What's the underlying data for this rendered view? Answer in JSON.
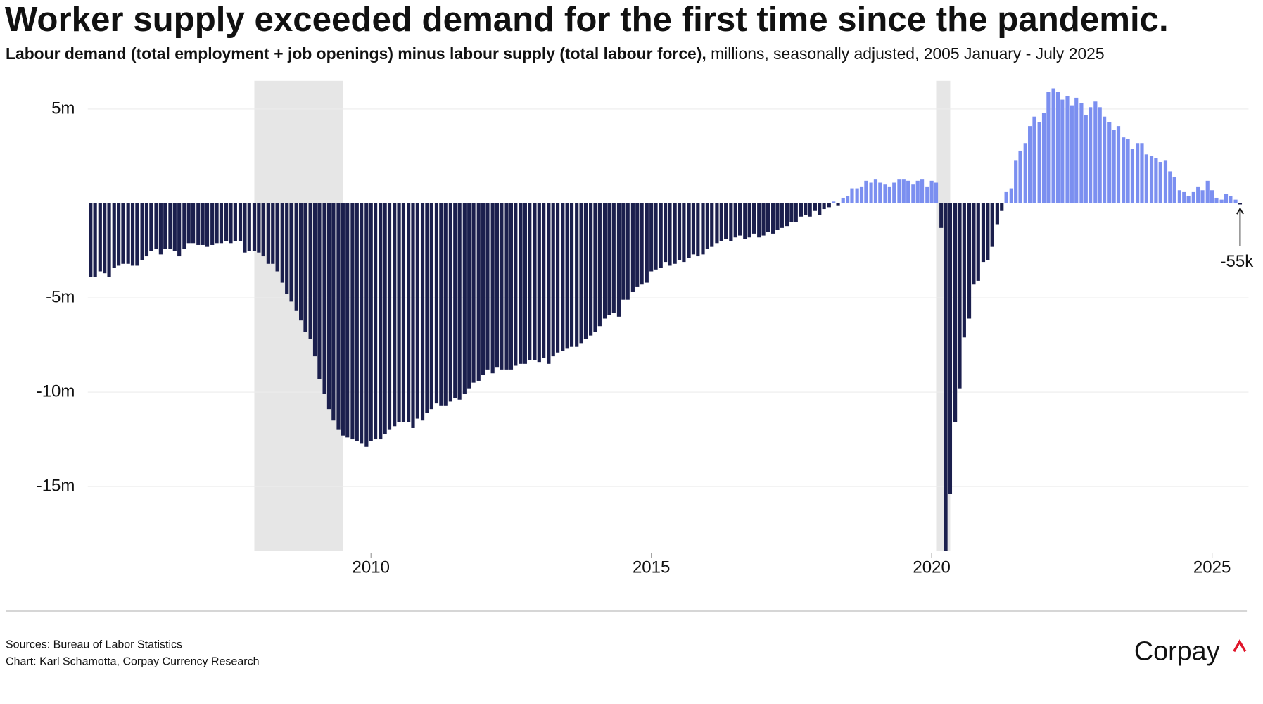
{
  "chart_data": {
    "type": "bar",
    "title": "Worker supply exceeded demand for the first time since the pandemic.",
    "subtitle": [
      "Labour demand (total employment + job openings) minus labour supply (total labour force),",
      " millions, seasonally adjusted, 2005 January - July 2025"
    ],
    "x": [
      2005.0,
      2005.08,
      2005.17,
      2005.25,
      2005.33,
      2005.42,
      2005.5,
      2005.58,
      2005.67,
      2005.75,
      2005.83,
      2005.92,
      2006.0,
      2006.08,
      2006.17,
      2006.25,
      2006.33,
      2006.42,
      2006.5,
      2006.58,
      2006.67,
      2006.75,
      2006.83,
      2006.92,
      2007.0,
      2007.08,
      2007.17,
      2007.25,
      2007.33,
      2007.42,
      2007.5,
      2007.58,
      2007.67,
      2007.75,
      2007.83,
      2007.92,
      2008.0,
      2008.08,
      2008.17,
      2008.25,
      2008.33,
      2008.42,
      2008.5,
      2008.58,
      2008.67,
      2008.75,
      2008.83,
      2008.92,
      2009.0,
      2009.08,
      2009.17,
      2009.25,
      2009.33,
      2009.42,
      2009.5,
      2009.58,
      2009.67,
      2009.75,
      2009.83,
      2009.92,
      2010.0,
      2010.08,
      2010.17,
      2010.25,
      2010.33,
      2010.42,
      2010.5,
      2010.58,
      2010.67,
      2010.75,
      2010.83,
      2010.92,
      2011.0,
      2011.08,
      2011.17,
      2011.25,
      2011.33,
      2011.42,
      2011.5,
      2011.58,
      2011.67,
      2011.75,
      2011.83,
      2011.92,
      2012.0,
      2012.08,
      2012.17,
      2012.25,
      2012.33,
      2012.42,
      2012.5,
      2012.58,
      2012.67,
      2012.75,
      2012.83,
      2012.92,
      2013.0,
      2013.08,
      2013.17,
      2013.25,
      2013.33,
      2013.42,
      2013.5,
      2013.58,
      2013.67,
      2013.75,
      2013.83,
      2013.92,
      2014.0,
      2014.08,
      2014.17,
      2014.25,
      2014.33,
      2014.42,
      2014.5,
      2014.58,
      2014.67,
      2014.75,
      2014.83,
      2014.92,
      2015.0,
      2015.08,
      2015.17,
      2015.25,
      2015.33,
      2015.42,
      2015.5,
      2015.58,
      2015.67,
      2015.75,
      2015.83,
      2015.92,
      2016.0,
      2016.08,
      2016.17,
      2016.25,
      2016.33,
      2016.42,
      2016.5,
      2016.58,
      2016.67,
      2016.75,
      2016.83,
      2016.92,
      2017.0,
      2017.08,
      2017.17,
      2017.25,
      2017.33,
      2017.42,
      2017.5,
      2017.58,
      2017.67,
      2017.75,
      2017.83,
      2017.92,
      2018.0,
      2018.08,
      2018.17,
      2018.25,
      2018.33,
      2018.42,
      2018.5,
      2018.58,
      2018.67,
      2018.75,
      2018.83,
      2018.92,
      2019.0,
      2019.08,
      2019.17,
      2019.25,
      2019.33,
      2019.42,
      2019.5,
      2019.58,
      2019.67,
      2019.75,
      2019.83,
      2019.92,
      2020.0,
      2020.08,
      2020.17,
      2020.25,
      2020.33,
      2020.42,
      2020.5,
      2020.58,
      2020.67,
      2020.75,
      2020.83,
      2020.92,
      2021.0,
      2021.08,
      2021.17,
      2021.25,
      2021.33,
      2021.42,
      2021.5,
      2021.58,
      2021.67,
      2021.75,
      2021.83,
      2021.92,
      2022.0,
      2022.08,
      2022.17,
      2022.25,
      2022.33,
      2022.42,
      2022.5,
      2022.58,
      2022.67,
      2022.75,
      2022.83,
      2022.92,
      2023.0,
      2023.08,
      2023.17,
      2023.25,
      2023.33,
      2023.42,
      2023.5,
      2023.58,
      2023.67,
      2023.75,
      2023.83,
      2023.92,
      2024.0,
      2024.08,
      2024.17,
      2024.25,
      2024.33,
      2024.42,
      2024.5,
      2024.58,
      2024.67,
      2024.75,
      2024.83,
      2024.92,
      2025.0,
      2025.08,
      2025.17,
      2025.25,
      2025.33,
      2025.42,
      2025.5
    ],
    "values": [
      -3.9,
      -3.9,
      -3.6,
      -3.7,
      -3.9,
      -3.4,
      -3.3,
      -3.2,
      -3.2,
      -3.3,
      -3.3,
      -3.0,
      -2.8,
      -2.5,
      -2.4,
      -2.7,
      -2.4,
      -2.4,
      -2.5,
      -2.8,
      -2.4,
      -2.1,
      -2.1,
      -2.2,
      -2.2,
      -2.3,
      -2.2,
      -2.1,
      -2.1,
      -2.0,
      -2.1,
      -2.0,
      -2.0,
      -2.6,
      -2.5,
      -2.5,
      -2.6,
      -2.8,
      -3.2,
      -3.2,
      -3.6,
      -4.2,
      -4.8,
      -5.2,
      -5.7,
      -6.2,
      -6.8,
      -7.2,
      -8.1,
      -9.3,
      -10.1,
      -10.9,
      -11.5,
      -12.0,
      -12.3,
      -12.4,
      -12.5,
      -12.6,
      -12.7,
      -12.9,
      -12.6,
      -12.5,
      -12.5,
      -12.2,
      -12.0,
      -11.8,
      -11.6,
      -11.6,
      -11.6,
      -11.9,
      -11.4,
      -11.5,
      -11.1,
      -10.9,
      -10.6,
      -10.7,
      -10.7,
      -10.5,
      -10.3,
      -10.4,
      -10.1,
      -9.8,
      -9.5,
      -9.4,
      -9.1,
      -8.8,
      -9.0,
      -8.7,
      -8.8,
      -8.8,
      -8.8,
      -8.6,
      -8.5,
      -8.5,
      -8.3,
      -8.3,
      -8.4,
      -8.2,
      -8.5,
      -8.1,
      -7.9,
      -7.8,
      -7.7,
      -7.6,
      -7.6,
      -7.4,
      -7.2,
      -7.0,
      -6.8,
      -6.5,
      -6.1,
      -5.9,
      -5.8,
      -6.0,
      -5.1,
      -5.1,
      -4.7,
      -4.4,
      -4.3,
      -4.2,
      -3.6,
      -3.5,
      -3.4,
      -3.1,
      -3.3,
      -3.2,
      -3.0,
      -3.1,
      -2.9,
      -2.7,
      -2.8,
      -2.7,
      -2.4,
      -2.3,
      -2.1,
      -2.0,
      -1.9,
      -2.0,
      -1.8,
      -1.7,
      -1.9,
      -1.8,
      -1.6,
      -1.8,
      -1.7,
      -1.5,
      -1.6,
      -1.4,
      -1.3,
      -1.2,
      -1.0,
      -1.0,
      -0.7,
      -0.6,
      -0.7,
      -0.4,
      -0.6,
      -0.3,
      -0.2,
      0.1,
      -0.1,
      0.3,
      0.4,
      0.8,
      0.8,
      0.9,
      1.2,
      1.1,
      1.3,
      1.1,
      1.0,
      0.9,
      1.1,
      1.3,
      1.3,
      1.2,
      1.0,
      1.2,
      1.3,
      0.9,
      1.2,
      1.1,
      -1.3,
      -18.4,
      -15.4,
      -11.6,
      -9.8,
      -7.1,
      -6.1,
      -4.3,
      -4.1,
      -3.1,
      -3.0,
      -2.3,
      -1.1,
      -0.4,
      0.6,
      0.8,
      2.3,
      2.8,
      3.2,
      4.1,
      4.6,
      4.3,
      4.8,
      5.9,
      6.1,
      5.9,
      5.5,
      5.7,
      5.2,
      5.6,
      5.3,
      4.7,
      5.1,
      5.4,
      5.1,
      4.6,
      4.3,
      3.9,
      4.1,
      3.5,
      3.4,
      2.9,
      3.2,
      3.2,
      2.6,
      2.5,
      2.4,
      2.2,
      2.3,
      1.7,
      1.4,
      0.7,
      0.6,
      0.4,
      0.6,
      0.9,
      0.7,
      1.2,
      0.7,
      0.3,
      0.2,
      0.5,
      0.4,
      0.2,
      -0.055
    ],
    "color": "#1b1f4d",
    "positive_color": "#7b8ff0",
    "shaded_periods": [
      [
        2007.92,
        2009.5
      ],
      [
        2020.08,
        2020.33
      ]
    ],
    "shade_color": "#e6e6e6",
    "xlim": [
      2004.95,
      2025.65
    ],
    "xticks": [
      2010,
      2015,
      2020,
      2025
    ],
    "ylim": [
      -18.4,
      6.5
    ],
    "yticks": [
      {
        "value": 5,
        "label": "5m"
      },
      {
        "value": -5,
        "label": "-5m"
      },
      {
        "value": -10,
        "label": "-10m"
      },
      {
        "value": -15,
        "label": "-15m"
      }
    ],
    "grid": true,
    "annotations": [
      {
        "x": 2025.5,
        "value": -0.055,
        "label": "-55k"
      }
    ]
  },
  "footer": {
    "sources": "Sources: Bureau of Labor Statistics",
    "credit": "Chart: Karl Schamotta, Corpay Currency Research",
    "logo": "Corpay"
  }
}
